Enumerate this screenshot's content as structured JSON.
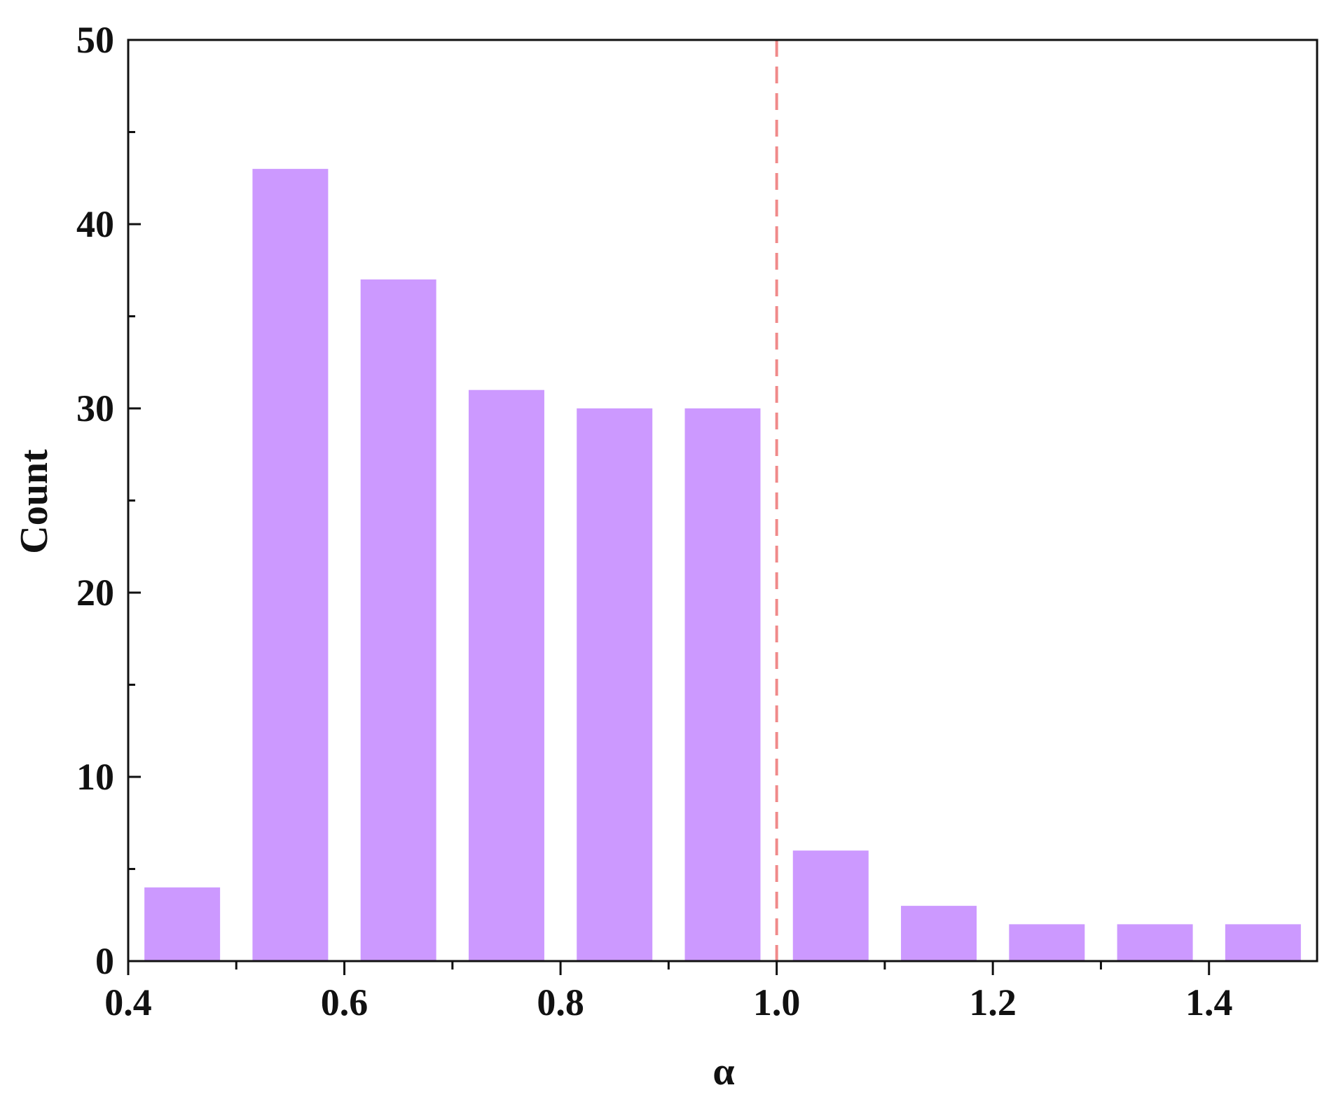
{
  "chart_data": {
    "type": "bar",
    "title": "",
    "xlabel": "α",
    "ylabel": "Count",
    "xlim": [
      0.4,
      1.5
    ],
    "ylim": [
      0,
      50
    ],
    "bin_width": 0.1,
    "bins": [
      {
        "x_start": 0.4,
        "x_end": 0.5,
        "value": 4
      },
      {
        "x_start": 0.5,
        "x_end": 0.6,
        "value": 43
      },
      {
        "x_start": 0.6,
        "x_end": 0.7,
        "value": 37
      },
      {
        "x_start": 0.7,
        "x_end": 0.8,
        "value": 31
      },
      {
        "x_start": 0.8,
        "x_end": 0.9,
        "value": 30
      },
      {
        "x_start": 0.9,
        "x_end": 1.0,
        "value": 30
      },
      {
        "x_start": 1.0,
        "x_end": 1.1,
        "value": 6
      },
      {
        "x_start": 1.1,
        "x_end": 1.2,
        "value": 3
      },
      {
        "x_start": 1.2,
        "x_end": 1.3,
        "value": 2
      },
      {
        "x_start": 1.3,
        "x_end": 1.4,
        "value": 2
      },
      {
        "x_start": 1.4,
        "x_end": 1.5,
        "value": 2
      }
    ],
    "x_ticks": [
      "0.4",
      "0.6",
      "0.8",
      "1.0",
      "1.2",
      "1.4"
    ],
    "y_ticks": [
      "0",
      "10",
      "20",
      "30",
      "40",
      "50"
    ],
    "reference_line": {
      "x": 1.0,
      "style": "dashed",
      "color": "#f08a8a"
    },
    "bar_color": "#cc99ff",
    "grid": false,
    "legend": "none"
  }
}
